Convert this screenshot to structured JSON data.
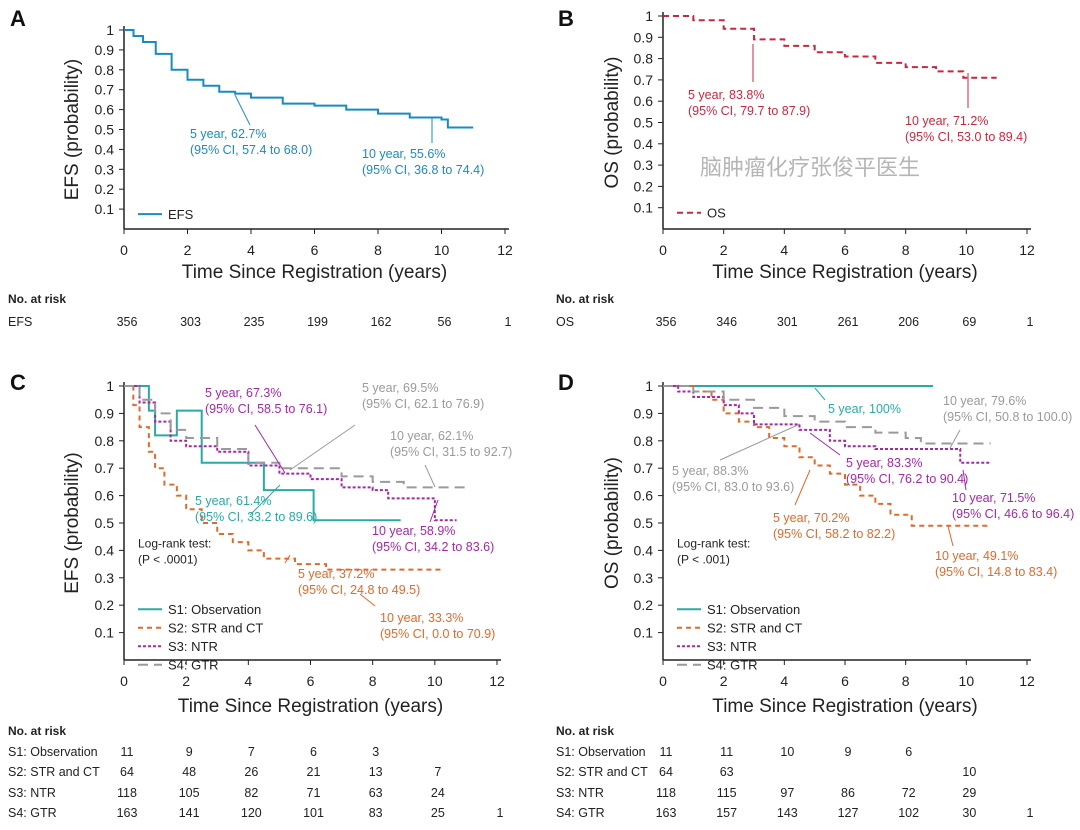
{
  "colors": {
    "A": "#1a8bbf",
    "B": "#c8283f",
    "S1": "#2aaaa4",
    "S2": "#e06a2a",
    "S3": "#a22aa5",
    "S4": "#9a9a9a"
  },
  "chart_data": [
    {
      "panel": "A",
      "type": "line",
      "step": true,
      "xlabel": "Time Since Registration (years)",
      "ylabel": "EFS (probability)",
      "xlim": [
        0,
        12
      ],
      "ylim": [
        0,
        1
      ],
      "xticks": [
        "0",
        "2",
        "4",
        "6",
        "8",
        "10",
        "12"
      ],
      "yticks": [
        "0.1",
        "0.2",
        "0.3",
        "0.4",
        "0.5",
        "0.6",
        "0.7",
        "0.8",
        "0.9",
        "1"
      ],
      "legend": "bottom-left",
      "series": [
        {
          "name": "EFS",
          "color": "A",
          "dash": "solid",
          "points": [
            [
              0,
              1
            ],
            [
              0.3,
              0.97
            ],
            [
              0.6,
              0.94
            ],
            [
              1,
              0.88
            ],
            [
              1.5,
              0.8
            ],
            [
              2,
              0.75
            ],
            [
              2.5,
              0.72
            ],
            [
              3,
              0.69
            ],
            [
              3.5,
              0.68
            ],
            [
              4,
              0.66
            ],
            [
              5,
              0.63
            ],
            [
              6,
              0.62
            ],
            [
              7,
              0.6
            ],
            [
              8,
              0.58
            ],
            [
              9,
              0.56
            ],
            [
              10,
              0.55
            ],
            [
              10.2,
              0.51
            ],
            [
              11,
              0.51
            ]
          ]
        }
      ],
      "annotations": [
        {
          "text": [
            "5 year, 62.7%",
            "(95% CI, 57.4 to 68.0)"
          ],
          "color": "A"
        },
        {
          "text": [
            "10 year, 55.6%",
            "(95% CI, 36.8 to 74.4)"
          ],
          "color": "A"
        }
      ],
      "risk": {
        "title": "No. at risk",
        "rows": [
          {
            "label": "EFS",
            "values": [
              "356",
              "303",
              "235",
              "199",
              "162",
              "56",
              "1"
            ]
          }
        ]
      }
    },
    {
      "panel": "B",
      "type": "line",
      "step": true,
      "xlabel": "Time Since Registration (years)",
      "ylabel": "OS (probability)",
      "xlim": [
        0,
        12
      ],
      "ylim": [
        0,
        1
      ],
      "xticks": [
        "0",
        "2",
        "4",
        "6",
        "8",
        "10",
        "12"
      ],
      "yticks": [
        "0.1",
        "0.2",
        "0.3",
        "0.4",
        "0.5",
        "0.6",
        "0.7",
        "0.8",
        "0.9",
        "1"
      ],
      "legend": "bottom-left",
      "series": [
        {
          "name": "OS",
          "color": "B",
          "dash": "dashed",
          "points": [
            [
              0,
              1
            ],
            [
              1,
              0.98
            ],
            [
              2,
              0.94
            ],
            [
              3,
              0.89
            ],
            [
              4,
              0.86
            ],
            [
              5,
              0.83
            ],
            [
              6,
              0.81
            ],
            [
              7,
              0.78
            ],
            [
              8,
              0.76
            ],
            [
              9,
              0.74
            ],
            [
              9.9,
              0.74
            ],
            [
              9.9,
              0.71
            ],
            [
              11,
              0.71
            ]
          ]
        }
      ],
      "annotations": [
        {
          "text": [
            "5 year, 83.8%",
            "(95% CI, 79.7 to 87.9)"
          ],
          "color": "B"
        },
        {
          "text": [
            "10 year, 71.2%",
            "(95% CI, 53.0 to 89.4)"
          ],
          "color": "B"
        }
      ],
      "risk": {
        "title": "No. at risk",
        "rows": [
          {
            "label": "OS",
            "values": [
              "356",
              "346",
              "301",
              "261",
              "206",
              "69",
              "1"
            ]
          }
        ]
      }
    },
    {
      "panel": "C",
      "type": "line",
      "step": true,
      "xlabel": "Time Since Registration (years)",
      "ylabel": "EFS (probability)",
      "xlim": [
        0,
        12
      ],
      "ylim": [
        0,
        1
      ],
      "xticks": [
        "0",
        "2",
        "4",
        "6",
        "8",
        "10",
        "12"
      ],
      "yticks": [
        "0.1",
        "0.2",
        "0.3",
        "0.4",
        "0.5",
        "0.6",
        "0.7",
        "0.8",
        "0.9",
        "1"
      ],
      "legend": "bottom-left",
      "test": [
        "Log-rank test:",
        "(P < .0001)"
      ],
      "series": [
        {
          "name": "S1: Observation",
          "color": "S1",
          "dash": "solid",
          "points": [
            [
              0,
              1
            ],
            [
              0.8,
              1
            ],
            [
              0.8,
              0.91
            ],
            [
              1,
              0.91
            ],
            [
              1,
              0.82
            ],
            [
              1.7,
              0.82
            ],
            [
              1.7,
              0.91
            ],
            [
              2.5,
              0.91
            ],
            [
              2.5,
              0.72
            ],
            [
              4.5,
              0.72
            ],
            [
              4.5,
              0.62
            ],
            [
              6.1,
              0.62
            ],
            [
              6.1,
              0.51
            ],
            [
              8.9,
              0.51
            ]
          ]
        },
        {
          "name": "S2: STR and CT",
          "color": "S2",
          "dash": "short",
          "points": [
            [
              0,
              1
            ],
            [
              0.3,
              0.93
            ],
            [
              0.5,
              0.85
            ],
            [
              0.8,
              0.76
            ],
            [
              1,
              0.7
            ],
            [
              1.3,
              0.64
            ],
            [
              1.7,
              0.6
            ],
            [
              2,
              0.55
            ],
            [
              2.5,
              0.5
            ],
            [
              3,
              0.46
            ],
            [
              3.5,
              0.43
            ],
            [
              4,
              0.4
            ],
            [
              4.5,
              0.37
            ],
            [
              5.5,
              0.35
            ],
            [
              6.5,
              0.33
            ],
            [
              10.2,
              0.33
            ]
          ]
        },
        {
          "name": "S3: NTR",
          "color": "S3",
          "dash": "dotted",
          "points": [
            [
              0,
              1
            ],
            [
              0.5,
              0.94
            ],
            [
              1,
              0.87
            ],
            [
              1.5,
              0.8
            ],
            [
              2,
              0.78
            ],
            [
              3,
              0.76
            ],
            [
              4,
              0.71
            ],
            [
              5,
              0.68
            ],
            [
              6,
              0.66
            ],
            [
              7,
              0.63
            ],
            [
              8,
              0.62
            ],
            [
              8.5,
              0.59
            ],
            [
              9.7,
              0.59
            ],
            [
              10,
              0.51
            ],
            [
              10.7,
              0.51
            ]
          ]
        },
        {
          "name": "S4: GTR",
          "color": "S4",
          "dash": "long",
          "points": [
            [
              0,
              1
            ],
            [
              0.5,
              0.95
            ],
            [
              1,
              0.9
            ],
            [
              1.5,
              0.84
            ],
            [
              2,
              0.81
            ],
            [
              3,
              0.77
            ],
            [
              4,
              0.72
            ],
            [
              5,
              0.7
            ],
            [
              7,
              0.67
            ],
            [
              8,
              0.65
            ],
            [
              9,
              0.63
            ],
            [
              11,
              0.62
            ]
          ]
        }
      ],
      "annotations": [
        {
          "text": [
            "5 year, 67.3%",
            "(95% CI, 58.5 to 76.1)"
          ],
          "color": "S3"
        },
        {
          "text": [
            "5 year, 69.5%",
            "(95% CI, 62.1 to 76.9)"
          ],
          "color": "S4"
        },
        {
          "text": [
            "10 year, 62.1%",
            "(95% CI, 31.5 to 92.7)"
          ],
          "color": "S4"
        },
        {
          "text": [
            "5 year, 61.4%",
            "(95% CI, 33.2 to 89.6)"
          ],
          "color": "S1"
        },
        {
          "text": [
            "10 year, 58.9%",
            "(95% CI, 34.2 to 83.6)"
          ],
          "color": "S3"
        },
        {
          "text": [
            "5 year, 37.2%",
            "(95% CI, 24.8 to 49.5)"
          ],
          "color": "S2"
        },
        {
          "text": [
            "10 year, 33.3%",
            "(95% CI, 0.0 to 70.9)"
          ],
          "color": "S2"
        }
      ],
      "risk": {
        "title": "No. at risk",
        "rows": [
          {
            "label": "S1: Observation",
            "values": [
              "11",
              "9",
              "7",
              "6",
              "3",
              "",
              ""
            ]
          },
          {
            "label": "S2: STR and CT",
            "values": [
              "64",
              "48",
              "26",
              "21",
              "13",
              "7",
              ""
            ]
          },
          {
            "label": "S3: NTR",
            "values": [
              "118",
              "105",
              "82",
              "71",
              "63",
              "24",
              ""
            ]
          },
          {
            "label": "S4: GTR",
            "values": [
              "163",
              "141",
              "120",
              "101",
              "83",
              "25",
              "1"
            ]
          }
        ]
      }
    },
    {
      "panel": "D",
      "type": "line",
      "step": true,
      "xlabel": "Time Since Registration (years)",
      "ylabel": "OS (probability)",
      "xlim": [
        0,
        12
      ],
      "ylim": [
        0,
        1
      ],
      "xticks": [
        "0",
        "2",
        "4",
        "6",
        "8",
        "10",
        "12"
      ],
      "yticks": [
        "0.1",
        "0.2",
        "0.3",
        "0.4",
        "0.5",
        "0.6",
        "0.7",
        "0.8",
        "0.9",
        "1"
      ],
      "legend": "bottom-left",
      "test": [
        "Log-rank test:",
        "(P < .001)"
      ],
      "series": [
        {
          "name": "S1: Observation",
          "color": "S1",
          "dash": "solid",
          "points": [
            [
              0,
              1
            ],
            [
              8.9,
              1
            ]
          ]
        },
        {
          "name": "S2: STR and CT",
          "color": "S2",
          "dash": "short",
          "points": [
            [
              0,
              1
            ],
            [
              1,
              0.98
            ],
            [
              1.6,
              0.95
            ],
            [
              2,
              0.9
            ],
            [
              2.5,
              0.87
            ],
            [
              3,
              0.85
            ],
            [
              3.5,
              0.81
            ],
            [
              4,
              0.78
            ],
            [
              4.5,
              0.74
            ],
            [
              5,
              0.71
            ],
            [
              5.5,
              0.68
            ],
            [
              6,
              0.64
            ],
            [
              6.5,
              0.6
            ],
            [
              7,
              0.57
            ],
            [
              7.5,
              0.53
            ],
            [
              8.2,
              0.49
            ],
            [
              10.7,
              0.49
            ]
          ]
        },
        {
          "name": "S3: NTR",
          "color": "S3",
          "dash": "dotted",
          "points": [
            [
              0,
              1
            ],
            [
              0.5,
              0.98
            ],
            [
              1,
              0.96
            ],
            [
              2,
              0.93
            ],
            [
              2.5,
              0.9
            ],
            [
              3,
              0.86
            ],
            [
              4.5,
              0.84
            ],
            [
              5.5,
              0.8
            ],
            [
              6,
              0.78
            ],
            [
              7,
              0.77
            ],
            [
              9.8,
              0.77
            ],
            [
              9.8,
              0.72
            ],
            [
              10.8,
              0.72
            ]
          ]
        },
        {
          "name": "S4: GTR",
          "color": "S4",
          "dash": "long",
          "points": [
            [
              0,
              1
            ],
            [
              1,
              0.98
            ],
            [
              2,
              0.95
            ],
            [
              3,
              0.92
            ],
            [
              4,
              0.89
            ],
            [
              5,
              0.87
            ],
            [
              6,
              0.85
            ],
            [
              7,
              0.83
            ],
            [
              8,
              0.81
            ],
            [
              8.5,
              0.79
            ],
            [
              10.8,
              0.79
            ]
          ]
        }
      ],
      "annotations": [
        {
          "text": [
            "5 year, 100%"
          ],
          "color": "S1"
        },
        {
          "text": [
            "10 year, 79.6%",
            "(95% CI, 50.8 to 100.0)"
          ],
          "color": "S4"
        },
        {
          "text": [
            "5 year, 88.3%",
            "(95% CI, 83.0 to 93.6)"
          ],
          "color": "S4"
        },
        {
          "text": [
            "5 year, 83.3%",
            "(95% CI, 76.2 to 90.4)"
          ],
          "color": "S3"
        },
        {
          "text": [
            "10 year, 71.5%",
            "(95% CI, 46.6 to 96.4)"
          ],
          "color": "S3"
        },
        {
          "text": [
            "5 year, 70.2%",
            "(95% CI, 58.2 to 82.2)"
          ],
          "color": "S2"
        },
        {
          "text": [
            "10 year, 49.1%",
            "(95% CI, 14.8 to 83.4)"
          ],
          "color": "S2"
        }
      ],
      "risk": {
        "title": "No. at risk",
        "rows": [
          {
            "label": "S1: Observation",
            "values": [
              "11",
              "11",
              "10",
              "9",
              "6",
              "",
              ""
            ]
          },
          {
            "label": "S2: STR and CT",
            "values": [
              "64",
              "63",
              "",
              "",
              "",
              "10",
              ""
            ]
          },
          {
            "label": "S3: NTR",
            "values": [
              "118",
              "115",
              "97",
              "86",
              "72",
              "29",
              ""
            ]
          },
          {
            "label": "S4: GTR",
            "values": [
              "163",
              "157",
              "143",
              "127",
              "102",
              "30",
              "1"
            ]
          }
        ]
      }
    }
  ],
  "watermark": "脑肿瘤化疗张俊平医生"
}
